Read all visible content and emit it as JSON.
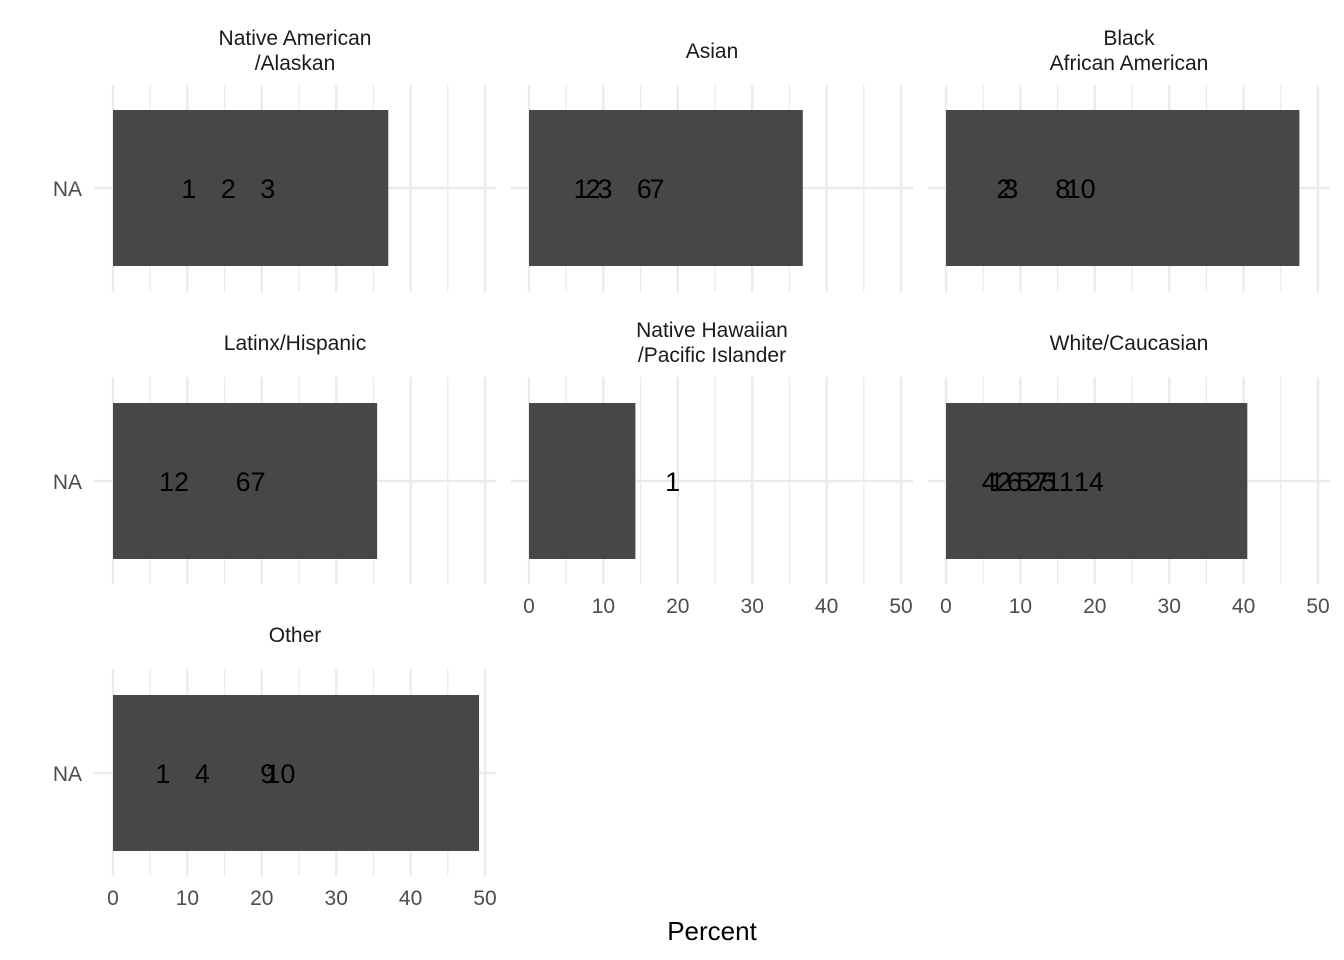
{
  "chart_data": {
    "type": "bar",
    "orientation": "horizontal",
    "xlabel": "Percent",
    "ylabel": "",
    "xlim": [
      0,
      52
    ],
    "x_ticks": [
      0,
      10,
      20,
      30,
      40,
      50
    ],
    "y_category": "NA",
    "grid": true,
    "bar_color": "#474747",
    "facets": [
      {
        "title_lines": [
          "Native American",
          "/Alaskan"
        ],
        "value": 37,
        "labels": [
          {
            "text": "1",
            "x": 10.2
          },
          {
            "text": "2",
            "x": 15.5
          },
          {
            "text": "3",
            "x": 20.8
          }
        ]
      },
      {
        "title_lines": [
          "Asian"
        ],
        "value": 36.8,
        "labels": [
          {
            "text": "1",
            "x": 7.0
          },
          {
            "text": "2",
            "x": 8.6
          },
          {
            "text": "3",
            "x": 10.2
          },
          {
            "text": "6",
            "x": 15.5
          },
          {
            "text": "7",
            "x": 17.2
          }
        ]
      },
      {
        "title_lines": [
          "Black",
          "African American"
        ],
        "value": 47.5,
        "labels": [
          {
            "text": "2",
            "x": 7.8
          },
          {
            "text": "3",
            "x": 8.7
          },
          {
            "text": "8",
            "x": 15.7
          },
          {
            "text": "10",
            "x": 18.1
          }
        ]
      },
      {
        "title_lines": [
          "Latinx/Hispanic"
        ],
        "value": 35.5,
        "labels": [
          {
            "text": "12",
            "x": 8.2
          },
          {
            "text": "67",
            "x": 18.5
          }
        ]
      },
      {
        "title_lines": [
          "Native Hawaiian",
          "/Pacific Islander"
        ],
        "value": 14.3,
        "labels": [
          {
            "text": "1",
            "x": 19.3
          }
        ]
      },
      {
        "title_lines": [
          "White/Caucasian"
        ],
        "value": 40.5,
        "labels": [
          {
            "text": "4",
            "x": 5.8
          },
          {
            "text": "1",
            "x": 6.8
          },
          {
            "text": "2",
            "x": 7.8
          },
          {
            "text": "6",
            "x": 9.2
          },
          {
            "text": "5",
            "x": 10.5
          },
          {
            "text": "2",
            "x": 11.8
          },
          {
            "text": "7",
            "x": 12.8
          },
          {
            "text": "5",
            "x": 13.8
          },
          {
            "text": "11",
            "x": 15.3
          },
          {
            "text": "14",
            "x": 19.2
          }
        ]
      },
      {
        "title_lines": [
          "Other"
        ],
        "value": 49.2,
        "labels": [
          {
            "text": "1",
            "x": 6.7
          },
          {
            "text": "4",
            "x": 12.0
          },
          {
            "text": "9",
            "x": 20.8
          },
          {
            "text": "10",
            "x": 22.5
          }
        ]
      }
    ]
  }
}
